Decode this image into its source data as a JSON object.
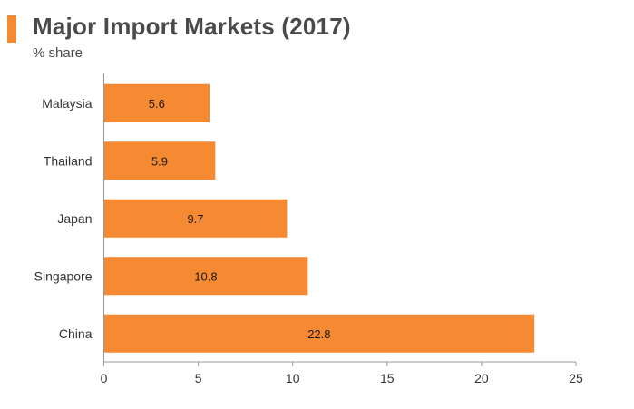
{
  "colors": {
    "bar": "#f58a33",
    "accent": "#f58a33",
    "title": "#4a4a4a",
    "axis_text": "#333333",
    "axis_line": "#999999"
  },
  "chart_data": {
    "type": "bar",
    "orientation": "horizontal",
    "title": "Major Import Markets (2017)",
    "subtitle": "% share",
    "categories": [
      "Malaysia",
      "Thailand",
      "Japan",
      "Singapore",
      "China"
    ],
    "values": [
      5.6,
      5.9,
      9.7,
      10.8,
      22.8
    ],
    "value_labels": [
      "5.6",
      "5.9",
      "9.7",
      "10.8",
      "22.8"
    ],
    "xlim": [
      0,
      25
    ],
    "xticks": [
      0,
      5,
      10,
      15,
      20,
      25
    ],
    "xlabel": "",
    "ylabel": "",
    "grid": false,
    "legend": "none"
  }
}
